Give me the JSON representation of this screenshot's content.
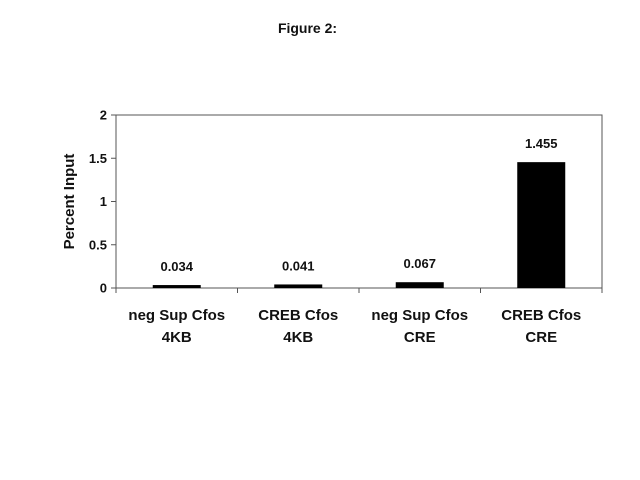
{
  "figure_label": "Figure 2:",
  "chart_data": {
    "type": "bar",
    "title": "",
    "xlabel": "",
    "ylabel": "Percent Input",
    "ylim": [
      0,
      2
    ],
    "yticks": [
      "0",
      "0.5",
      "1",
      "1.5",
      "2"
    ],
    "ytick_values": [
      0,
      0.5,
      1,
      1.5,
      2
    ],
    "categories": [
      [
        "neg Sup Cfos",
        "4KB"
      ],
      [
        "CREB Cfos",
        "4KB"
      ],
      [
        "neg Sup Cfos",
        "CRE"
      ],
      [
        "CREB Cfos",
        "CRE"
      ]
    ],
    "values": [
      0.034,
      0.041,
      0.067,
      1.455
    ],
    "value_labels": [
      "0.034",
      "0.041",
      "0.067",
      "1.455"
    ],
    "grid": false,
    "legend": "none",
    "bar_color": "#000000",
    "axis_color": "#555555"
  }
}
